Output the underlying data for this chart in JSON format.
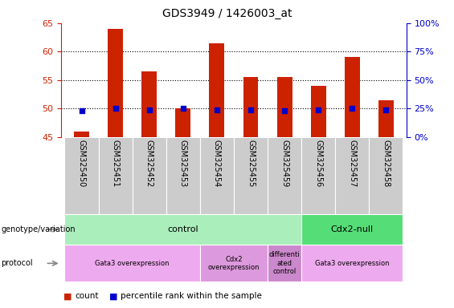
{
  "title": "GDS3949 / 1426003_at",
  "samples": [
    "GSM325450",
    "GSM325451",
    "GSM325452",
    "GSM325453",
    "GSM325454",
    "GSM325455",
    "GSM325459",
    "GSM325456",
    "GSM325457",
    "GSM325458"
  ],
  "count_values": [
    46,
    64,
    56.5,
    50,
    61.5,
    55.5,
    55.5,
    54,
    59,
    51.5
  ],
  "count_base": 45,
  "percentile_values": [
    23,
    25,
    24,
    25,
    24,
    24,
    23,
    24,
    25,
    24
  ],
  "ylim_left": [
    45,
    65
  ],
  "ylim_right": [
    0,
    100
  ],
  "yticks_left": [
    45,
    50,
    55,
    60,
    65
  ],
  "yticks_right": [
    0,
    25,
    50,
    75,
    100
  ],
  "bar_color": "#cc2200",
  "dot_color": "#0000cc",
  "bg_color": "#ffffff",
  "left_axis_color": "#cc2200",
  "right_axis_color": "#0000cc",
  "genotype_groups": [
    {
      "label": "control",
      "start": 0,
      "end": 7,
      "color": "#aaeebb"
    },
    {
      "label": "Cdx2-null",
      "start": 7,
      "end": 10,
      "color": "#55dd77"
    }
  ],
  "protocol_groups": [
    {
      "label": "Gata3 overexpression",
      "start": 0,
      "end": 4,
      "color": "#eeaaee"
    },
    {
      "label": "Cdx2\noverexpression",
      "start": 4,
      "end": 6,
      "color": "#dd99dd"
    },
    {
      "label": "differenti\nated\ncontrol",
      "start": 6,
      "end": 7,
      "color": "#cc88cc"
    },
    {
      "label": "Gata3 overexpression",
      "start": 7,
      "end": 10,
      "color": "#eeaaee"
    }
  ],
  "sample_bg_color": "#cccccc",
  "legend_count_color": "#cc2200",
  "legend_pct_color": "#0000cc",
  "grid_dotted_at": [
    50,
    55,
    60
  ]
}
